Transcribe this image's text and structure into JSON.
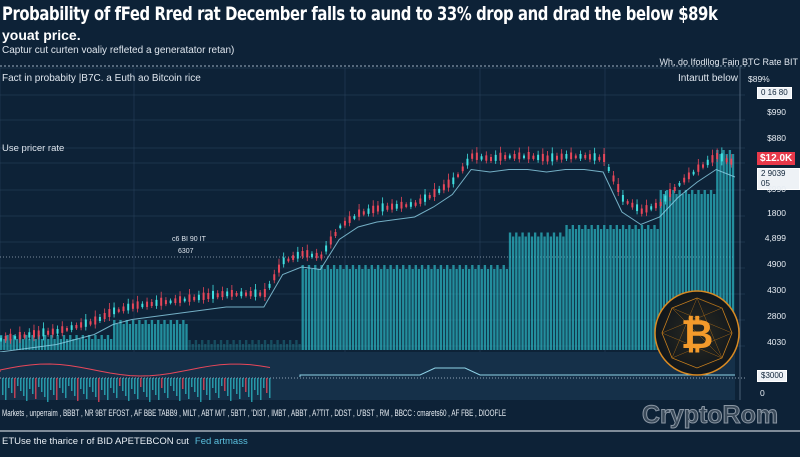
{
  "header": {
    "title": "Probability of fFed Rred rat December falls to aund to 33% drop and drad the below $89k",
    "subtitle": "youat price.",
    "caption": "Captur cut curten voaliy refleted a generatator retan)"
  },
  "chart_labels": {
    "top_right": "Wh, do Ifodllog Fain BTC Rate BIT",
    "pane_title": "Fact in probabity |B7C. a Euth ao Bitcoin rice",
    "pane_right": "Intarutt below",
    "price_label": "Use pricer rate",
    "note_1": "c6 BI 90 IT",
    "note_2": "6307"
  },
  "chart_data": {
    "type": "line",
    "title": "",
    "xlabel": "",
    "ylabel": "",
    "ylim": [
      0,
      100
    ],
    "grid": true,
    "y_tick_labels": [
      "$89%",
      "$990",
      "$880",
      "$990",
      "1800",
      "4,899",
      "4900",
      "4300",
      "2800",
      "4030"
    ],
    "boxed_labels": [
      "0 16 80",
      "2 9039 05",
      "$3000"
    ],
    "current_price_label": "$12.0K",
    "lower_pane_zero": "0",
    "series": [
      {
        "values": [
          4,
          5,
          6,
          7,
          9,
          11,
          15,
          17,
          18,
          19,
          20,
          21,
          22,
          22,
          22,
          35,
          38,
          37,
          49,
          54,
          56,
          57,
          58,
          62,
          67,
          77,
          76,
          77,
          77,
          76,
          77,
          77,
          76,
          60,
          55,
          58,
          66,
          72,
          77,
          74
        ]
      },
      {
        "values": [
          6,
          6,
          6,
          6,
          6,
          6,
          12,
          12,
          12,
          12,
          4,
          4,
          4,
          4,
          4,
          4,
          34,
          34,
          34,
          34,
          34,
          34,
          34,
          34,
          34,
          34,
          34,
          47,
          47,
          47,
          50,
          50,
          50,
          50,
          50,
          64,
          64,
          64,
          80,
          80
        ]
      }
    ],
    "colors": {
      "candle": "#e8475a",
      "volume": "#2bb3c0",
      "line": "#8fd3e8",
      "up": "#3fe0e0"
    }
  },
  "ticker": "Markets , unperraim , BBBT , NR 9BT  EFOST , AF BBE  TABB9 , MILT , ABT  M/T , 5BTT , 'DI3T , IMBT , ABBT , A7TIT , DDST , U'BST , RM , BBCC : cmarets60 , AF FBE  , DIOOFLE",
  "brand": "CryptoRom",
  "footer": {
    "text": "ETUse the tharice r of BID APETEBCON cut",
    "link": "Fed artmass"
  }
}
